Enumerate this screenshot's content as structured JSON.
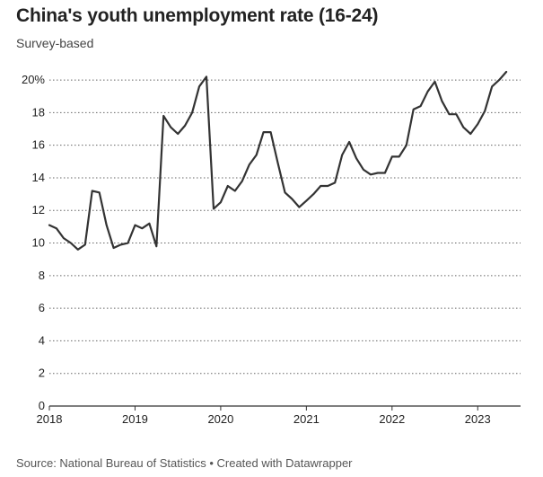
{
  "title": "China's youth unemployment rate (16-24)",
  "subtitle": "Survey-based",
  "source": "Source: National Bureau of Statistics • Created with Datawrapper",
  "colors": {
    "line": "#333333",
    "grid": "#666666",
    "axis": "#333333"
  },
  "chart_data": {
    "type": "line",
    "title": "China's youth unemployment rate (16-24)",
    "subtitle": "Survey-based",
    "xlabel": "",
    "ylabel": "",
    "x_ticks": [
      "2018",
      "2019",
      "2020",
      "2021",
      "2022",
      "2023"
    ],
    "y_ticks": [
      "0",
      "2",
      "4",
      "6",
      "8",
      "10",
      "12",
      "14",
      "16",
      "18",
      "20%"
    ],
    "ylim": [
      0,
      20.5
    ],
    "xlim": [
      2018.0,
      2023.5
    ],
    "grid": true,
    "series": [
      {
        "x": [
          2018.0,
          2018.083,
          2018.167,
          2018.25,
          2018.333,
          2018.417,
          2018.5,
          2018.583,
          2018.667,
          2018.75,
          2018.833,
          2018.917,
          2019.0,
          2019.083,
          2019.167,
          2019.25,
          2019.333,
          2019.417,
          2019.5,
          2019.583,
          2019.667,
          2019.75,
          2019.833,
          2019.917,
          2020.0,
          2020.083,
          2020.167,
          2020.25,
          2020.333,
          2020.417,
          2020.5,
          2020.583,
          2020.667,
          2020.75,
          2020.833,
          2020.917,
          2021.0,
          2021.083,
          2021.167,
          2021.25,
          2021.333,
          2021.417,
          2021.5,
          2021.583,
          2021.667,
          2021.75,
          2021.833,
          2021.917,
          2022.0,
          2022.083,
          2022.167,
          2022.25,
          2022.333,
          2022.417,
          2022.5,
          2022.583,
          2022.667,
          2022.75,
          2022.833,
          2022.917,
          2023.0,
          2023.083,
          2023.167,
          2023.25,
          2023.333
        ],
        "values": [
          11.1,
          10.9,
          10.3,
          10.0,
          9.6,
          9.9,
          13.2,
          13.1,
          11.1,
          9.7,
          9.9,
          10.0,
          11.1,
          10.9,
          11.2,
          9.8,
          17.8,
          17.1,
          16.7,
          17.2,
          18.0,
          19.6,
          20.2,
          12.1,
          12.5,
          13.5,
          13.2,
          13.8,
          14.8,
          15.4,
          16.8,
          16.8,
          14.9,
          13.1,
          12.7,
          12.2,
          12.6,
          13.0,
          13.5,
          13.5,
          13.7,
          15.4,
          16.2,
          15.2,
          14.5,
          14.2,
          14.3,
          14.3,
          15.3,
          15.3,
          16.0,
          18.2,
          18.4,
          19.3,
          19.9,
          18.7,
          17.9,
          17.9,
          17.1,
          16.7,
          17.3,
          18.1,
          19.6,
          20.0,
          20.5
        ]
      }
    ]
  }
}
